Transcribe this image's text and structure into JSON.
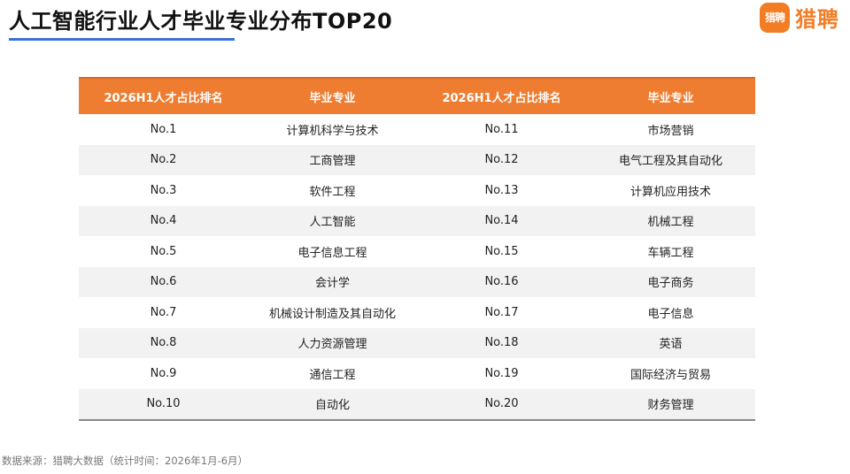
{
  "header": {
    "title": "人工智能行业人才毕业专业分布TOP20",
    "logo_badge": "猎聘",
    "logo_text": "猎聘"
  },
  "table": {
    "headers": [
      "2026H1人才占比排名",
      "毕业专业",
      "2026H1人才占比排名",
      "毕业专业"
    ],
    "rows": [
      [
        "No.1",
        "计算机科学与技术",
        "No.11",
        "市场营销"
      ],
      [
        "No.2",
        "工商管理",
        "No.12",
        "电气工程及其自动化"
      ],
      [
        "No.3",
        "软件工程",
        "No.13",
        "计算机应用技术"
      ],
      [
        "No.4",
        "人工智能",
        "No.14",
        "机械工程"
      ],
      [
        "No.5",
        "电子信息工程",
        "No.15",
        "车辆工程"
      ],
      [
        "No.6",
        "会计学",
        "No.16",
        "电子商务"
      ],
      [
        "No.7",
        "机械设计制造及其自动化",
        "No.17",
        "电子信息"
      ],
      [
        "No.8",
        "人力资源管理",
        "No.18",
        "英语"
      ],
      [
        "No.9",
        "通信工程",
        "No.19",
        "国际经济与贸易"
      ],
      [
        "No.10",
        "自动化",
        "No.20",
        "财务管理"
      ]
    ]
  },
  "footer": {
    "source": "数据来源：猎聘大数据（统计时间：2026年1月-6月）"
  },
  "colors": {
    "accent": "#ee7d31",
    "brand": "#f27d25",
    "underline": "#3a6fd8",
    "row_stripe": "#f2f2f2"
  }
}
